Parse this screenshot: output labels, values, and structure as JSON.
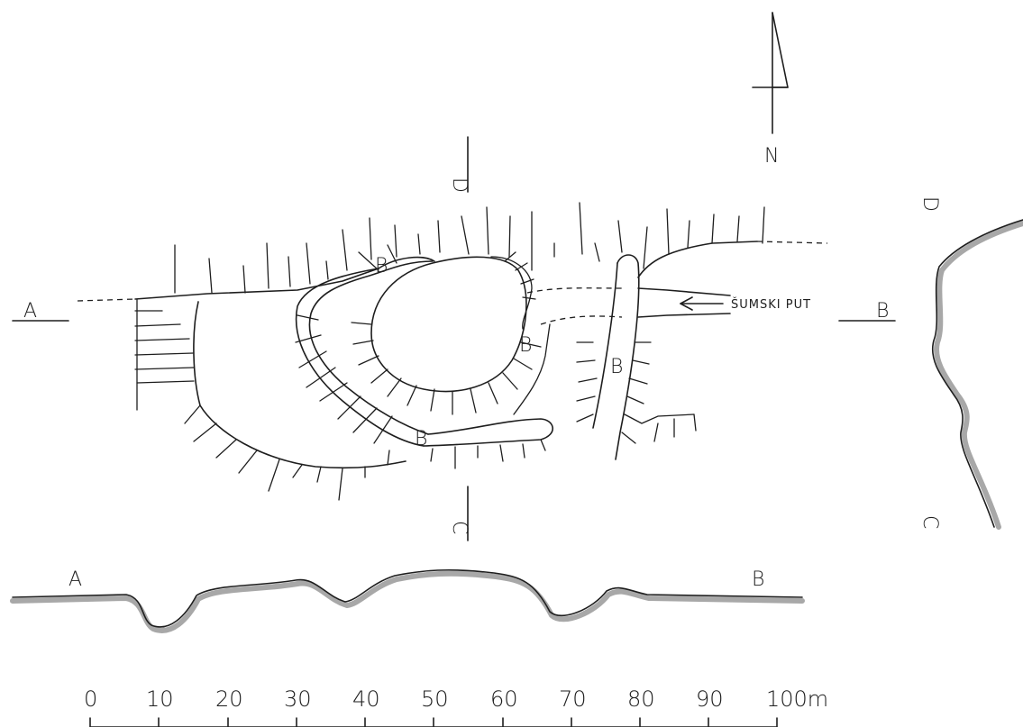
{
  "labels": {
    "north": "N",
    "section_a": "A",
    "section_b": "B",
    "section_c": "C",
    "section_d": "D",
    "wall": "B",
    "road": "ŠUMSKI PUT"
  },
  "scale": {
    "unit": "m",
    "ticks": [
      "0",
      "10",
      "20",
      "30",
      "40",
      "50",
      "60",
      "70",
      "80",
      "90",
      "100m"
    ]
  }
}
